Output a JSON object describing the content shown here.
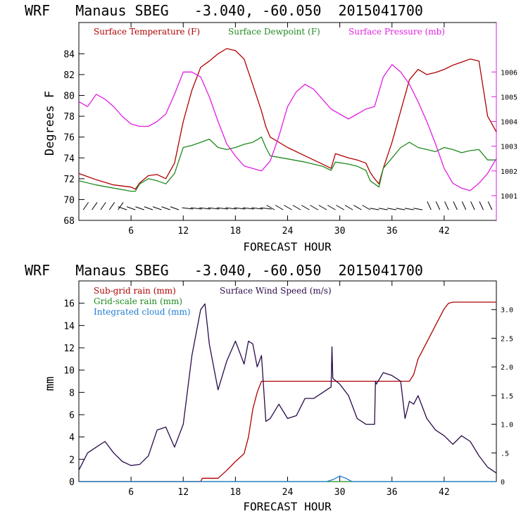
{
  "chart_data": [
    {
      "type": "line",
      "title": "WRF   Manaus SBEG   -3.040, -60.050  2015041700",
      "xlabel": "FORECAST HOUR",
      "ylabel": "Degrees F",
      "xlim": [
        0,
        48
      ],
      "ylim": [
        68,
        87
      ],
      "xticks": [
        6,
        12,
        18,
        24,
        30,
        36,
        42
      ],
      "xtick_labels": [
        "6",
        "12",
        "18",
        "24",
        "30",
        "36",
        "42"
      ],
      "yticks": [
        68,
        70,
        72,
        74,
        76,
        78,
        80,
        82,
        84
      ],
      "ytick_labels": [
        "68",
        "70",
        "72",
        "74",
        "76",
        "78",
        "80",
        "82",
        "84"
      ],
      "y2label": "mb",
      "y2lim": [
        1000,
        1008
      ],
      "y2ticks": [
        1001,
        1002,
        1003,
        1004,
        1005,
        1006
      ],
      "y2tick_labels": [
        "1001",
        "1002",
        "1003",
        "1004",
        "1005",
        "1006"
      ],
      "legend": [
        "Surface Temperature (F)",
        "Surface Dewpoint (F)",
        "Surface Pressure (mb)"
      ],
      "series": [
        {
          "name": "Surface Temperature (F)",
          "color": "#b00000",
          "axis": "left",
          "x": [
            0,
            2,
            4,
            6,
            6.5,
            7,
            8,
            9,
            10,
            11,
            12,
            13,
            14,
            15,
            16,
            17,
            18,
            19,
            20,
            21,
            21.5,
            22,
            24,
            26,
            28,
            29,
            29.5,
            31,
            32,
            33,
            33.5,
            34,
            34.5,
            35,
            36,
            37,
            38,
            39,
            40,
            41,
            42,
            43,
            44,
            45,
            46,
            47,
            48
          ],
          "y": [
            72.5,
            71.9,
            71.4,
            71.2,
            71.0,
            71.6,
            72.3,
            72.4,
            72.0,
            73.5,
            77.5,
            80.5,
            82.7,
            83.3,
            84.0,
            84.5,
            84.3,
            83.5,
            81.0,
            78.5,
            77.0,
            76.0,
            75.0,
            74.2,
            73.4,
            73.0,
            74.4,
            74.0,
            73.8,
            73.5,
            72.6,
            72.0,
            71.5,
            73.0,
            75.5,
            78.5,
            81.5,
            82.5,
            82.0,
            82.2,
            82.5,
            82.9,
            83.2,
            83.5,
            83.3,
            78.0,
            76.5
          ]
        },
        {
          "name": "Surface Dewpoint (F)",
          "color": "#1f8a1f",
          "axis": "left",
          "x": [
            0,
            2,
            4,
            6,
            6.5,
            7,
            8,
            9,
            10,
            11,
            12,
            13,
            14,
            15,
            16,
            17,
            18,
            19,
            20,
            21,
            21.5,
            22,
            24,
            26,
            28,
            29,
            29.5,
            31,
            32,
            33,
            33.5,
            34,
            34.5,
            35,
            36,
            37,
            38,
            39,
            40,
            41,
            42,
            43,
            44,
            45,
            46,
            47,
            48
          ],
          "y": [
            71.8,
            71.4,
            71.1,
            70.8,
            70.8,
            71.5,
            72.0,
            71.8,
            71.5,
            72.5,
            75.0,
            75.2,
            75.5,
            75.8,
            75.0,
            74.8,
            75.0,
            75.3,
            75.5,
            76.0,
            75.0,
            74.2,
            73.9,
            73.6,
            73.2,
            72.8,
            73.6,
            73.4,
            73.2,
            72.8,
            71.8,
            71.5,
            71.2,
            73.0,
            74.0,
            75.0,
            75.5,
            75.0,
            74.8,
            74.6,
            75.0,
            74.8,
            74.5,
            74.7,
            74.8,
            73.8,
            73.8
          ]
        },
        {
          "name": "Surface Pressure (mb)",
          "color": "#e21ee2",
          "axis": "right",
          "x": [
            0,
            1,
            2,
            3,
            4,
            5,
            6,
            7,
            8,
            9,
            10,
            11,
            12,
            13,
            14,
            15,
            16,
            17,
            18,
            19,
            20,
            21,
            22,
            23,
            24,
            25,
            26,
            27,
            28,
            29,
            30,
            31,
            32,
            33,
            34,
            35,
            36,
            37,
            38,
            39,
            40,
            41,
            42,
            43,
            44,
            45,
            46,
            47,
            48
          ],
          "y": [
            1004.8,
            1004.6,
            1005.1,
            1004.9,
            1004.6,
            1004.2,
            1003.9,
            1003.8,
            1003.8,
            1004.0,
            1004.3,
            1005.1,
            1006.0,
            1006.0,
            1005.8,
            1005.0,
            1004.0,
            1003.1,
            1002.6,
            1002.2,
            1002.1,
            1002.0,
            1002.4,
            1003.4,
            1004.6,
            1005.2,
            1005.5,
            1005.3,
            1004.9,
            1004.5,
            1004.3,
            1004.1,
            1004.3,
            1004.5,
            1004.6,
            1005.8,
            1006.3,
            1006.0,
            1005.5,
            1004.8,
            1004.0,
            1003.1,
            1002.1,
            1001.5,
            1001.3,
            1001.2,
            1001.5,
            1001.9,
            1002.5
          ]
        }
      ]
    },
    {
      "type": "line",
      "title": "WRF   Manaus SBEG   -3.040, -60.050  2015041700",
      "xlabel": "FORECAST HOUR",
      "ylabel": "mm",
      "xlim": [
        0,
        48
      ],
      "ylim": [
        0,
        18
      ],
      "xticks": [
        6,
        12,
        18,
        24,
        30,
        36,
        42
      ],
      "xtick_labels": [
        "6",
        "12",
        "18",
        "24",
        "30",
        "36",
        "42"
      ],
      "yticks": [
        0,
        2,
        4,
        6,
        8,
        10,
        12,
        14,
        16
      ],
      "ytick_labels": [
        "0",
        "2",
        "4",
        "6",
        "8",
        "10",
        "12",
        "14",
        "16"
      ],
      "y2lim": [
        0,
        3.5
      ],
      "y2ticks": [
        0,
        0.5,
        1.0,
        1.5,
        2.0,
        2.5,
        3.0
      ],
      "y2tick_labels": [
        "0",
        ".5",
        "1.0",
        "1.5",
        "2.0",
        "2.5",
        "3.0"
      ],
      "legend": [
        "Sub-grid rain (mm)",
        "Grid-scale rain (mm)",
        "Integrated cloud (mm)",
        "Surface Wind Speed (m/s)"
      ],
      "series": [
        {
          "name": "Sub-grid rain (mm)",
          "color": "#b00000",
          "axis": "left",
          "x": [
            0,
            14,
            14.2,
            16,
            17,
            18,
            19,
            19.5,
            20,
            20.5,
            21,
            24,
            30,
            36,
            37,
            38,
            38.5,
            39,
            40,
            41,
            42,
            42.5,
            43,
            48
          ],
          "y": [
            0,
            0,
            0.3,
            0.3,
            1.0,
            1.8,
            2.5,
            4.0,
            6.5,
            8.0,
            9.0,
            9.0,
            9.0,
            9.0,
            9.0,
            9.0,
            9.6,
            11.0,
            12.5,
            14.0,
            15.5,
            16.0,
            16.1,
            16.1
          ]
        },
        {
          "name": "Grid-scale rain (mm)",
          "color": "#1f8a1f",
          "axis": "left",
          "x": [
            0,
            48
          ],
          "y": [
            0,
            0
          ]
        },
        {
          "name": "Integrated cloud (mm)",
          "color": "#1e7bd2",
          "axis": "left",
          "x": [
            0,
            28.5,
            29.3,
            30,
            30.7,
            31.4,
            48
          ],
          "y": [
            0,
            0,
            0.2,
            0.5,
            0.3,
            0,
            0
          ]
        },
        {
          "name": "Surface Wind Speed (m/s)",
          "color": "#2a0b4a",
          "axis": "right",
          "x": [
            0,
            1,
            2,
            3,
            4,
            5,
            6,
            7,
            8,
            9,
            10,
            11,
            12,
            13,
            14,
            14.5,
            15,
            16,
            17,
            18,
            19,
            19.5,
            20,
            20.5,
            21,
            21.5,
            22,
            23,
            24,
            25,
            26,
            27,
            28,
            29,
            29.1,
            29.2,
            30,
            31,
            32,
            33,
            34,
            34.1,
            34.2,
            35,
            36,
            37,
            37.5,
            38,
            38.5,
            39,
            40,
            41,
            42,
            43,
            44,
            45,
            46,
            47,
            48
          ],
          "y": [
            0.2,
            0.5,
            0.6,
            0.7,
            0.5,
            0.35,
            0.28,
            0.3,
            0.45,
            0.9,
            0.95,
            0.6,
            1.0,
            2.2,
            3.0,
            3.1,
            2.4,
            1.6,
            2.1,
            2.45,
            2.05,
            2.45,
            2.4,
            2.0,
            2.2,
            1.05,
            1.1,
            1.35,
            1.1,
            1.15,
            1.45,
            1.45,
            1.55,
            1.65,
            2.35,
            1.8,
            1.7,
            1.5,
            1.1,
            1.0,
            1.0,
            1.75,
            1.7,
            1.9,
            1.85,
            1.75,
            1.1,
            1.4,
            1.35,
            1.5,
            1.1,
            0.9,
            0.8,
            0.65,
            0.8,
            0.7,
            0.45,
            0.25,
            0.15
          ]
        }
      ]
    }
  ]
}
